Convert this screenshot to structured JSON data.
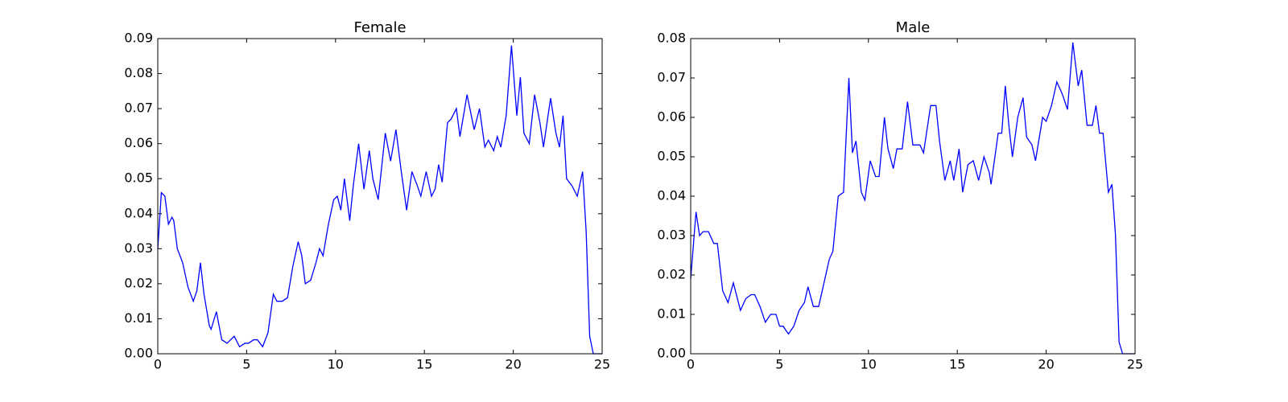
{
  "chart_data": [
    {
      "type": "line",
      "title": "Female",
      "x": [
        0,
        0.2,
        0.4,
        0.6,
        0.8,
        0.9,
        1.1,
        1.4,
        1.7,
        2.0,
        2.2,
        2.4,
        2.6,
        2.9,
        3.0,
        3.3,
        3.6,
        3.9,
        4.3,
        4.6,
        4.9,
        5.1,
        5.4,
        5.6,
        5.9,
        6.2,
        6.5,
        6.7,
        7.0,
        7.3,
        7.6,
        7.9,
        8.1,
        8.3,
        8.6,
        8.9,
        9.1,
        9.3,
        9.6,
        9.9,
        10.1,
        10.3,
        10.5,
        10.8,
        11.0,
        11.3,
        11.6,
        11.9,
        12.1,
        12.4,
        12.8,
        13.1,
        13.4,
        13.7,
        14.0,
        14.3,
        14.6,
        14.8,
        15.1,
        15.4,
        15.6,
        15.8,
        16.0,
        16.3,
        16.5,
        16.8,
        17.0,
        17.4,
        17.8,
        18.1,
        18.4,
        18.6,
        18.9,
        19.1,
        19.3,
        19.6,
        19.9,
        20.2,
        20.4,
        20.6,
        20.9,
        21.2,
        21.5,
        21.7,
        22.1,
        22.4,
        22.6,
        22.8,
        23.0,
        23.3,
        23.6,
        23.9,
        24.1,
        24.3,
        24.5,
        25
      ],
      "series": [
        {
          "color": "#0000ff",
          "values": [
            0.03,
            0.046,
            0.045,
            0.037,
            0.039,
            0.038,
            0.03,
            0.026,
            0.019,
            0.015,
            0.018,
            0.026,
            0.017,
            0.008,
            0.007,
            0.012,
            0.004,
            0.003,
            0.005,
            0.002,
            0.003,
            0.003,
            0.004,
            0.004,
            0.002,
            0.006,
            0.017,
            0.015,
            0.015,
            0.016,
            0.025,
            0.032,
            0.028,
            0.02,
            0.021,
            0.026,
            0.03,
            0.028,
            0.037,
            0.044,
            0.045,
            0.041,
            0.05,
            0.038,
            0.048,
            0.06,
            0.047,
            0.058,
            0.05,
            0.044,
            0.063,
            0.055,
            0.064,
            0.052,
            0.041,
            0.052,
            0.048,
            0.045,
            0.052,
            0.045,
            0.047,
            0.054,
            0.049,
            0.066,
            0.067,
            0.07,
            0.062,
            0.074,
            0.064,
            0.07,
            0.059,
            0.061,
            0.058,
            0.062,
            0.059,
            0.068,
            0.088,
            0.068,
            0.079,
            0.063,
            0.06,
            0.074,
            0.066,
            0.059,
            0.073,
            0.063,
            0.059,
            0.068,
            0.05,
            0.048,
            0.045,
            0.052,
            0.035,
            0.005,
            0,
            0
          ]
        }
      ],
      "xlim": [
        0,
        25
      ],
      "xticks": [
        0,
        5,
        10,
        15,
        20,
        25
      ],
      "ylim": [
        0,
        0.09
      ],
      "yticks": [
        {
          "value": 0,
          "label": "0.00"
        },
        {
          "value": 0.01,
          "label": "0.01"
        },
        {
          "value": 0.02,
          "label": "0.02"
        },
        {
          "value": 0.03,
          "label": "0.03"
        },
        {
          "value": 0.04,
          "label": "0.04"
        },
        {
          "value": 0.05,
          "label": "0.05"
        },
        {
          "value": 0.06,
          "label": "0.06"
        },
        {
          "value": 0.07,
          "label": "0.07"
        },
        {
          "value": 0.08,
          "label": "0.08"
        },
        {
          "value": 0.09,
          "label": "0.09"
        }
      ]
    },
    {
      "type": "line",
      "title": "Male",
      "x": [
        0,
        0.3,
        0.5,
        0.7,
        1.0,
        1.3,
        1.5,
        1.8,
        2.1,
        2.4,
        2.8,
        3.1,
        3.4,
        3.6,
        3.9,
        4.2,
        4.5,
        4.8,
        5.0,
        5.2,
        5.5,
        5.8,
        6.1,
        6.4,
        6.6,
        6.9,
        7.2,
        7.5,
        7.8,
        8.0,
        8.3,
        8.6,
        8.9,
        9.1,
        9.3,
        9.6,
        9.8,
        10.1,
        10.4,
        10.6,
        10.9,
        11.1,
        11.4,
        11.6,
        11.9,
        12.2,
        12.5,
        12.9,
        13.1,
        13.5,
        13.8,
        14.0,
        14.3,
        14.6,
        14.8,
        15.1,
        15.3,
        15.6,
        15.9,
        16.2,
        16.5,
        16.8,
        16.9,
        17.3,
        17.5,
        17.7,
        17.9,
        18.1,
        18.4,
        18.7,
        18.9,
        19.2,
        19.4,
        19.8,
        20.0,
        20.3,
        20.6,
        20.9,
        21.2,
        21.5,
        21.8,
        22.0,
        22.3,
        22.6,
        22.8,
        23.0,
        23.2,
        23.5,
        23.7,
        23.9,
        24.1,
        24.3,
        25
      ],
      "series": [
        {
          "color": "#0000ff",
          "values": [
            0.019,
            0.036,
            0.03,
            0.031,
            0.031,
            0.028,
            0.028,
            0.016,
            0.013,
            0.018,
            0.011,
            0.014,
            0.015,
            0.015,
            0.012,
            0.008,
            0.01,
            0.01,
            0.007,
            0.007,
            0.005,
            0.007,
            0.011,
            0.013,
            0.017,
            0.012,
            0.012,
            0.018,
            0.024,
            0.026,
            0.04,
            0.041,
            0.07,
            0.051,
            0.054,
            0.041,
            0.039,
            0.049,
            0.045,
            0.045,
            0.06,
            0.052,
            0.047,
            0.052,
            0.052,
            0.064,
            0.053,
            0.053,
            0.051,
            0.063,
            0.063,
            0.054,
            0.044,
            0.049,
            0.044,
            0.052,
            0.041,
            0.048,
            0.049,
            0.044,
            0.05,
            0.046,
            0.043,
            0.056,
            0.056,
            0.068,
            0.058,
            0.05,
            0.06,
            0.065,
            0.055,
            0.053,
            0.049,
            0.06,
            0.059,
            0.063,
            0.069,
            0.066,
            0.062,
            0.079,
            0.068,
            0.072,
            0.058,
            0.058,
            0.063,
            0.056,
            0.056,
            0.041,
            0.043,
            0.03,
            0.003,
            0,
            0
          ]
        }
      ],
      "xlim": [
        0,
        25
      ],
      "xticks": [
        0,
        5,
        10,
        15,
        20,
        25
      ],
      "ylim": [
        0,
        0.08
      ],
      "yticks": [
        {
          "value": 0,
          "label": "0.00"
        },
        {
          "value": 0.01,
          "label": "0.01"
        },
        {
          "value": 0.02,
          "label": "0.02"
        },
        {
          "value": 0.03,
          "label": "0.03"
        },
        {
          "value": 0.04,
          "label": "0.04"
        },
        {
          "value": 0.05,
          "label": "0.05"
        },
        {
          "value": 0.06,
          "label": "0.06"
        },
        {
          "value": 0.07,
          "label": "0.07"
        },
        {
          "value": 0.08,
          "label": "0.08"
        }
      ]
    }
  ]
}
